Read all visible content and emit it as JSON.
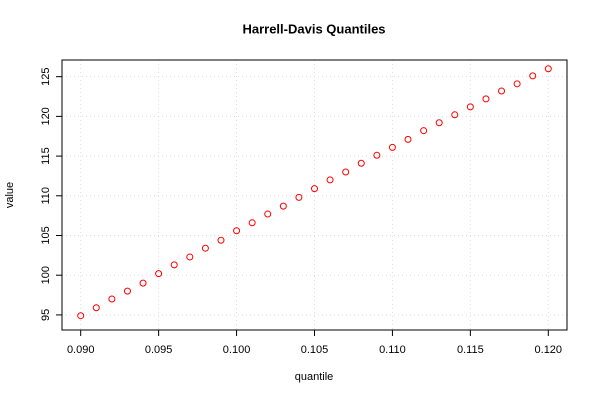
{
  "chart_data": {
    "type": "scatter",
    "title": "Harrell-Davis Quantiles",
    "x_label": "quantile",
    "y_label": "value",
    "x": [
      0.09,
      0.091,
      0.092,
      0.093,
      0.094,
      0.095,
      0.096,
      0.097,
      0.098,
      0.099,
      0.1,
      0.101,
      0.102,
      0.103,
      0.104,
      0.105,
      0.106,
      0.107,
      0.108,
      0.109,
      0.11,
      0.111,
      0.112,
      0.113,
      0.114,
      0.115,
      0.116,
      0.117,
      0.118,
      0.119,
      0.12
    ],
    "values": [
      94.9,
      95.9,
      97.0,
      98.0,
      99.0,
      100.2,
      101.3,
      102.3,
      103.4,
      104.4,
      105.6,
      106.6,
      107.7,
      108.7,
      109.8,
      110.9,
      112.0,
      113.0,
      114.1,
      115.1,
      116.1,
      117.1,
      118.2,
      119.2,
      120.2,
      121.2,
      122.2,
      123.2,
      124.1,
      125.1,
      126.0
    ],
    "color": "#ff0000",
    "xlim": [
      0.0888,
      0.1212
    ],
    "ylim": [
      93.1,
      127.1
    ],
    "xticks": [
      {
        "value": 0.09,
        "label": "0.090"
      },
      0.095,
      {
        "value": 0.1,
        "label": "0.100"
      },
      0.105,
      {
        "value": 0.11,
        "label": "0.110"
      },
      0.115,
      {
        "value": 0.12,
        "label": "0.120"
      }
    ],
    "yticks": [
      95,
      100,
      105,
      110,
      115,
      120,
      125
    ],
    "grid": true
  }
}
